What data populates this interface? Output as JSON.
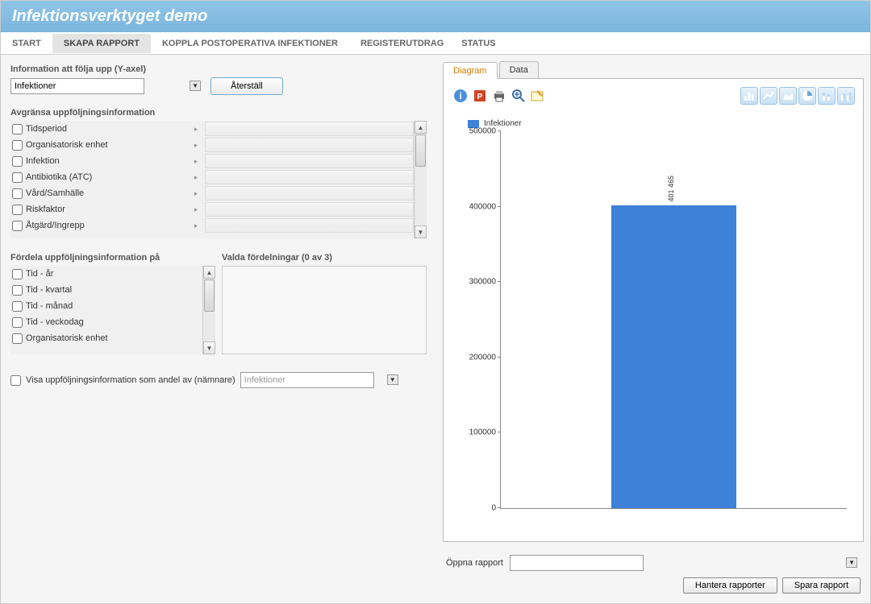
{
  "header": {
    "title": "Infektionsverktyget demo"
  },
  "nav": {
    "tabs": [
      "START",
      "SKAPA RAPPORT",
      "KOPPLA POSTOPERATIVA INFEKTIONER",
      "REGISTERUTDRAG"
    ],
    "active_index": 1,
    "right_tab": "STATUS"
  },
  "yaxis_section": {
    "label": "Information att följa upp (Y-axel)",
    "selected": "Infektioner",
    "reset_button": "Återställ"
  },
  "filters": {
    "label": "Avgränsa uppföljningsinformation",
    "items": [
      {
        "label": "Tidsperiod"
      },
      {
        "label": "Organisatorisk enhet"
      },
      {
        "label": "Infektion"
      },
      {
        "label": "Antibiotika (ATC)"
      },
      {
        "label": "Vård/Samhälle"
      },
      {
        "label": "Riskfaktor"
      },
      {
        "label": "Åtgärd/Ingrepp"
      }
    ]
  },
  "distribute": {
    "left_label": "Fördela uppföljningsinformation på",
    "right_label": "Valda fördelningar (0 av 3)",
    "items": [
      {
        "label": "Tid - år"
      },
      {
        "label": "Tid - kvartal"
      },
      {
        "label": "Tid - månad"
      },
      {
        "label": "Tid - veckodag"
      },
      {
        "label": "Organisatorisk enhet"
      }
    ]
  },
  "share": {
    "checkbox_label": "Visa uppföljningsinformation som andel av (nämnare)",
    "dropdown_value": "Infektioner"
  },
  "chart_tabs": {
    "items": [
      "Diagram",
      "Data"
    ],
    "active_index": 0
  },
  "chart": {
    "type": "bar",
    "legend_label": "Infektioner",
    "ylim": [
      0,
      500000
    ],
    "ytick_step": 100000,
    "yticks": [
      "0",
      "100000",
      "200000",
      "300000",
      "400000",
      "500000"
    ],
    "bar_value": 401465,
    "bar_label": "401 465",
    "bar_color": "#3e81d8",
    "background_color": "#ffffff",
    "axis_color": "#888888",
    "tick_fontsize": 10
  },
  "bottom": {
    "open_label": "Öppna rapport",
    "open_value": "",
    "manage_button": "Hantera rapporter",
    "save_button": "Spara rapport"
  },
  "colors": {
    "header_bg": "#7cb5dd",
    "accent": "#3e81d8",
    "panel_bg": "#f5f5f5"
  }
}
